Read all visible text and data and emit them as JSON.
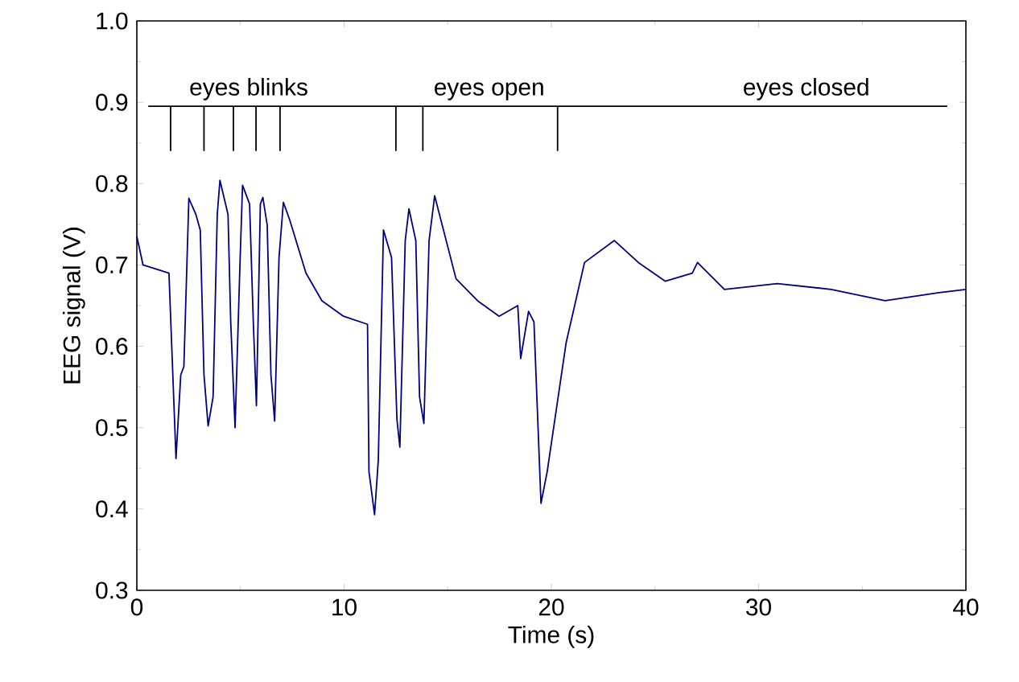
{
  "chart_data": {
    "type": "line",
    "xlabel": "Time (s)",
    "ylabel": "EEG signal (V)",
    "xlim": [
      0,
      40
    ],
    "ylim": [
      0.3,
      1.0
    ],
    "xticks": [
      0,
      10,
      20,
      30,
      40
    ],
    "yticks": [
      {
        "value": 0.3,
        "label": "0.3"
      },
      {
        "value": 0.4,
        "label": "0.4"
      },
      {
        "value": 0.5,
        "label": "0.5"
      },
      {
        "value": 0.6,
        "label": "0.6"
      },
      {
        "value": 0.7,
        "label": "0.7"
      },
      {
        "value": 0.8,
        "label": "0.8"
      },
      {
        "value": 0.9,
        "label": "0.9"
      },
      {
        "value": 1.0,
        "label": "1.0"
      }
    ],
    "series": [
      {
        "color": "#000080",
        "x": [
          0,
          0.3,
          1.55,
          1.89,
          2.12,
          2.27,
          2.51,
          2.85,
          3.06,
          3.24,
          3.44,
          3.68,
          3.88,
          4.01,
          4.4,
          4.53,
          4.74,
          4.97,
          5.1,
          5.44,
          5.62,
          5.77,
          5.96,
          6.08,
          6.29,
          6.47,
          6.65,
          6.86,
          7.07,
          7.38,
          8.16,
          8.93,
          9.97,
          11.13,
          11.2,
          11.47,
          11.65,
          11.9,
          12.29,
          12.55,
          12.69,
          12.95,
          13.13,
          13.46,
          13.64,
          13.85,
          14.1,
          14.37,
          15.4,
          16.44,
          17.48,
          18.38,
          18.52,
          18.9,
          19.16,
          19.5,
          19.8,
          20.71,
          21.6,
          23.04,
          24.2,
          25.5,
          26.8,
          27.05,
          28.35,
          30.9,
          33.5,
          36.1,
          38.7,
          40
        ],
        "values": [
          0.735,
          0.7,
          0.69,
          0.462,
          0.565,
          0.575,
          0.782,
          0.762,
          0.743,
          0.565,
          0.502,
          0.538,
          0.762,
          0.804,
          0.762,
          0.63,
          0.5,
          0.696,
          0.798,
          0.775,
          0.63,
          0.527,
          0.775,
          0.783,
          0.749,
          0.565,
          0.508,
          0.709,
          0.777,
          0.755,
          0.69,
          0.656,
          0.637,
          0.627,
          0.446,
          0.393,
          0.46,
          0.743,
          0.709,
          0.51,
          0.476,
          0.73,
          0.769,
          0.73,
          0.538,
          0.505,
          0.73,
          0.785,
          0.683,
          0.656,
          0.637,
          0.65,
          0.585,
          0.643,
          0.63,
          0.407,
          0.446,
          0.604,
          0.703,
          0.73,
          0.703,
          0.68,
          0.69,
          0.703,
          0.67,
          0.677,
          0.67,
          0.656,
          0.666,
          0.67
        ]
      },
      {
        "color": "#000000",
        "x": [
          0.55,
          39.1,
          null,
          1.63,
          1.63,
          null,
          3.24,
          3.24,
          null,
          4.66,
          4.66,
          null,
          5.75,
          5.75,
          null,
          6.91,
          6.91,
          null,
          12.5,
          12.5,
          null,
          13.8,
          13.8,
          null,
          20.3,
          20.3
        ],
        "values": [
          0.895,
          0.895,
          null,
          0.895,
          0.84,
          null,
          0.895,
          0.84,
          null,
          0.895,
          0.84,
          null,
          0.895,
          0.84,
          null,
          0.895,
          0.84,
          null,
          0.895,
          0.84,
          null,
          0.895,
          0.84,
          null,
          0.895,
          0.84
        ]
      }
    ],
    "annotations": [
      {
        "text": "eyes blinks",
        "x": 5.4,
        "y": 0.9
      },
      {
        "text": "eyes open",
        "x": 17.0,
        "y": 0.9
      },
      {
        "text": "eyes closed",
        "x": 32.3,
        "y": 0.9
      }
    ]
  }
}
